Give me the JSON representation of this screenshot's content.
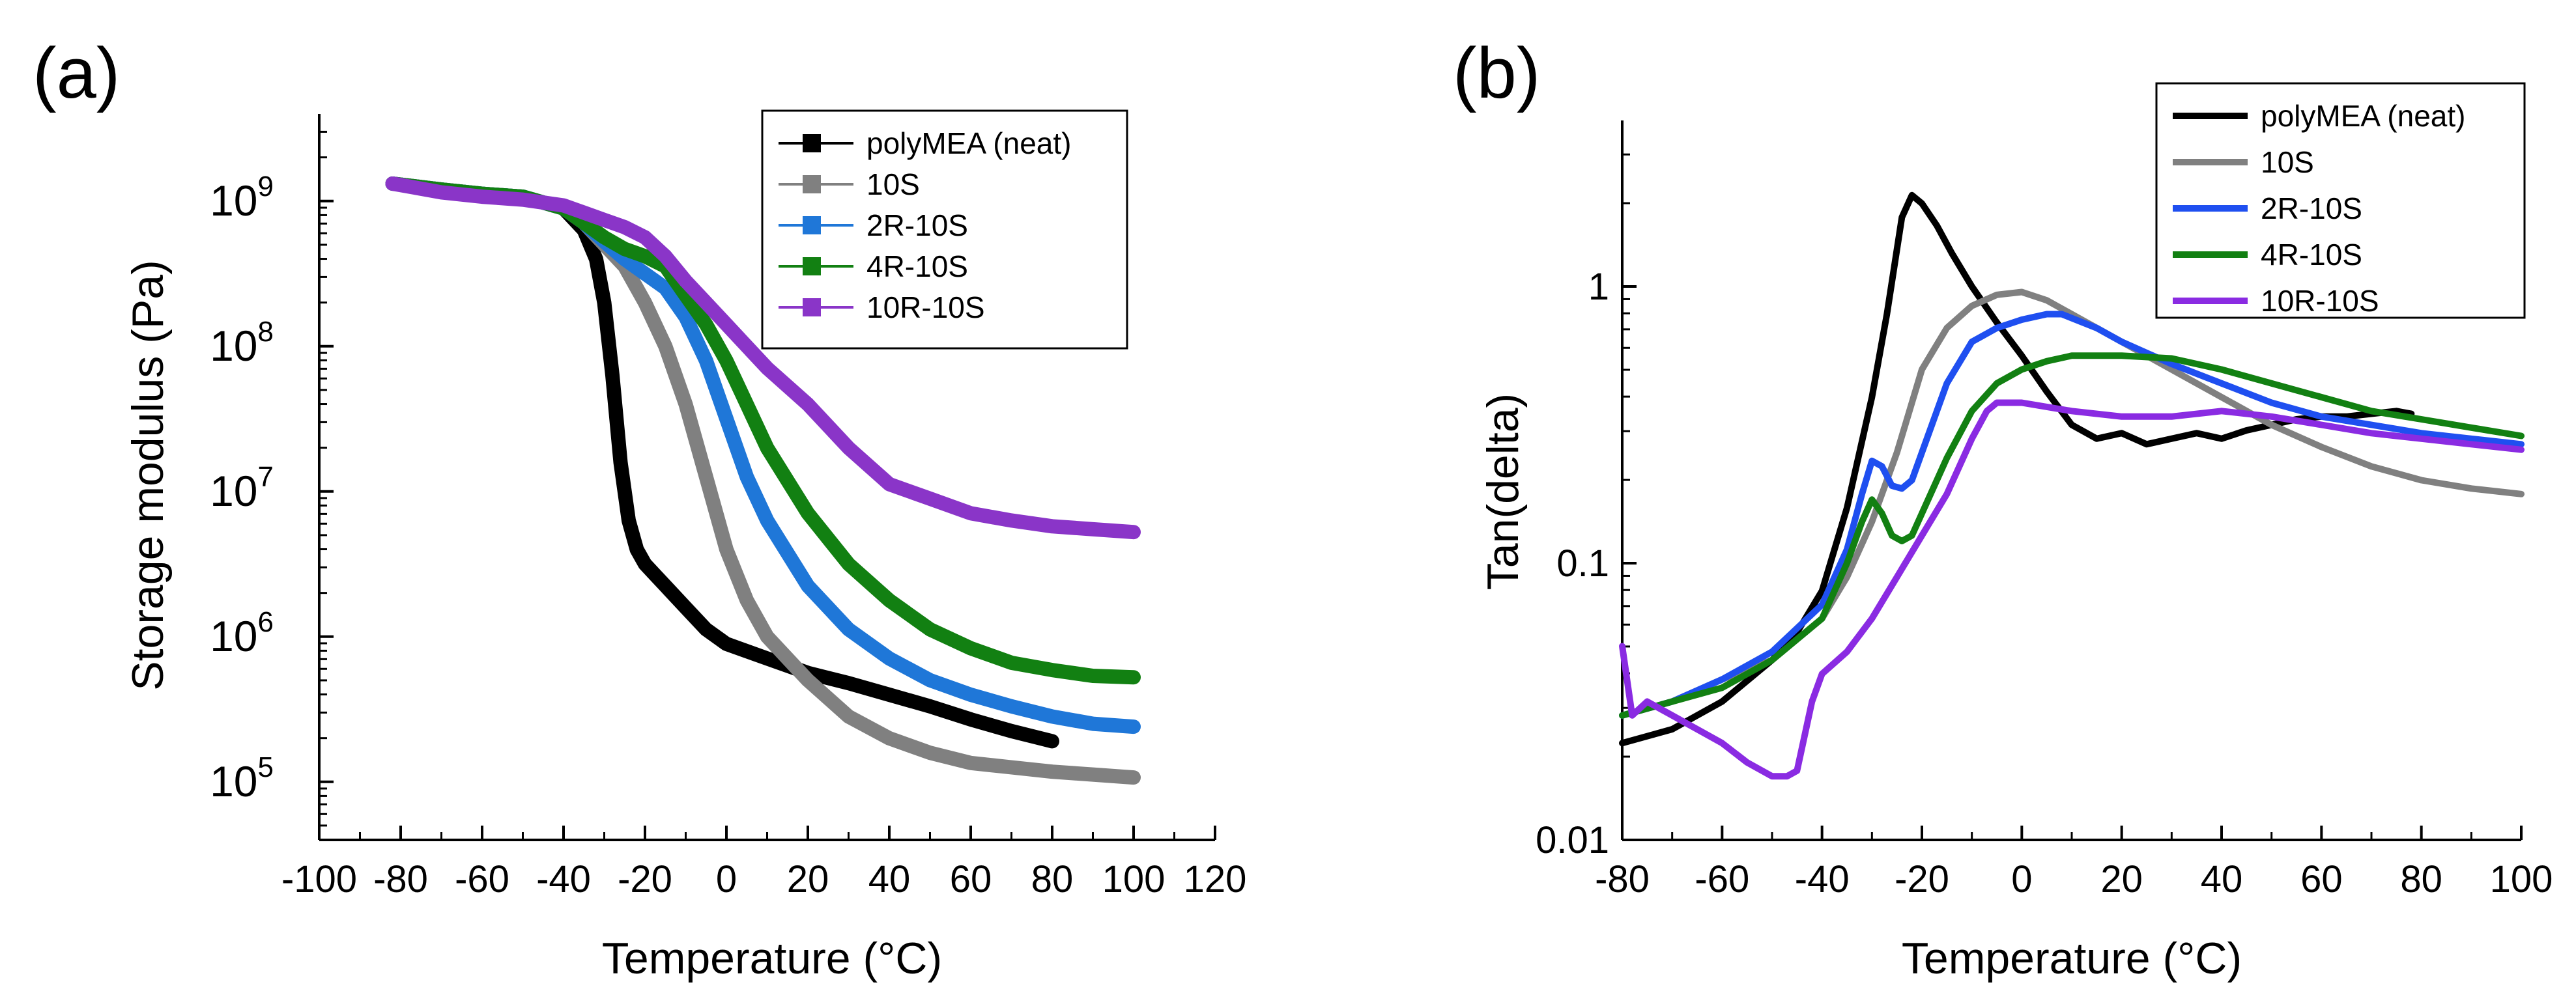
{
  "chart_data": [
    {
      "panel": "(a)",
      "type": "line",
      "xlabel": "Temperature (°C)",
      "ylabel": "Storage modulus (Pa)",
      "xlim": [
        -100,
        120
      ],
      "ylim_log10": [
        4.6,
        9.6
      ],
      "yscale": "log",
      "grid": false,
      "legend": "top-right",
      "x_ticks": [
        -100,
        -80,
        -60,
        -40,
        -20,
        0,
        20,
        40,
        60,
        80,
        100,
        120
      ],
      "x_tick_labels": [
        "-100",
        "-80",
        "-60",
        "-40",
        "-20",
        "0",
        "20",
        "40",
        "60",
        "80",
        "100",
        "120"
      ],
      "y_ticks_log10": [
        5,
        6,
        7,
        8,
        9
      ],
      "y_tick_base": "10",
      "y_tick_exponents": [
        "5",
        "6",
        "7",
        "8",
        "9"
      ],
      "series": [
        {
          "name": "polyMEA (neat)",
          "color": "#000000",
          "x": [
            -82,
            -70,
            -60,
            -50,
            -40,
            -35,
            -32,
            -30,
            -28,
            -26,
            -24,
            -22,
            -20,
            -15,
            -10,
            -5,
            0,
            10,
            20,
            30,
            40,
            50,
            60,
            70,
            80
          ],
          "log10_y": [
            9.12,
            9.08,
            9.05,
            9.03,
            8.95,
            8.8,
            8.6,
            8.3,
            7.8,
            7.2,
            6.8,
            6.6,
            6.5,
            6.35,
            6.2,
            6.05,
            5.95,
            5.85,
            5.75,
            5.68,
            5.6,
            5.52,
            5.43,
            5.35,
            5.28
          ]
        },
        {
          "name": "10S",
          "color": "#808080",
          "x": [
            -82,
            -70,
            -60,
            -50,
            -40,
            -35,
            -30,
            -25,
            -20,
            -15,
            -10,
            -5,
            0,
            5,
            10,
            20,
            30,
            40,
            50,
            60,
            70,
            80,
            90,
            100
          ],
          "log10_y": [
            9.12,
            9.08,
            9.05,
            9.03,
            8.95,
            8.85,
            8.7,
            8.55,
            8.3,
            8.0,
            7.6,
            7.1,
            6.6,
            6.25,
            6.0,
            5.7,
            5.45,
            5.3,
            5.2,
            5.13,
            5.1,
            5.07,
            5.05,
            5.03
          ]
        },
        {
          "name": "2R-10S",
          "color": "#1f77d8",
          "x": [
            -82,
            -70,
            -60,
            -50,
            -40,
            -35,
            -30,
            -25,
            -20,
            -15,
            -10,
            -5,
            0,
            5,
            10,
            20,
            30,
            40,
            50,
            60,
            70,
            80,
            90,
            100
          ],
          "log10_y": [
            9.12,
            9.08,
            9.05,
            9.03,
            8.95,
            8.85,
            8.72,
            8.6,
            8.5,
            8.4,
            8.2,
            7.9,
            7.5,
            7.1,
            6.8,
            6.35,
            6.05,
            5.85,
            5.7,
            5.6,
            5.52,
            5.45,
            5.4,
            5.38
          ]
        },
        {
          "name": "4R-10S",
          "color": "#128012",
          "x": [
            -82,
            -70,
            -60,
            -50,
            -40,
            -35,
            -30,
            -25,
            -20,
            -15,
            -10,
            -5,
            0,
            5,
            10,
            20,
            30,
            40,
            50,
            60,
            70,
            80,
            90,
            100
          ],
          "log10_y": [
            9.12,
            9.08,
            9.05,
            9.03,
            8.95,
            8.85,
            8.75,
            8.67,
            8.62,
            8.55,
            8.35,
            8.15,
            7.9,
            7.6,
            7.3,
            6.85,
            6.5,
            6.25,
            6.05,
            5.92,
            5.82,
            5.77,
            5.73,
            5.72
          ]
        },
        {
          "name": "10R-10S",
          "color": "#8a35c8",
          "x": [
            -82,
            -70,
            -60,
            -50,
            -40,
            -35,
            -30,
            -25,
            -20,
            -15,
            -10,
            -5,
            0,
            10,
            20,
            30,
            40,
            50,
            60,
            70,
            80,
            90,
            100
          ],
          "log10_y": [
            9.12,
            9.06,
            9.03,
            9.01,
            8.97,
            8.92,
            8.87,
            8.82,
            8.75,
            8.62,
            8.45,
            8.3,
            8.15,
            7.85,
            7.6,
            7.3,
            7.05,
            6.95,
            6.85,
            6.8,
            6.76,
            6.74,
            6.72
          ]
        }
      ],
      "markers": true
    },
    {
      "panel": "(b)",
      "type": "line",
      "xlabel": "Temperature (°C)",
      "ylabel": "Tan(delta)",
      "xlim": [
        -80,
        100
      ],
      "ylim_log10": [
        -2,
        0.6
      ],
      "yscale": "log",
      "grid": false,
      "legend": "top-right",
      "x_ticks": [
        -80,
        -60,
        -40,
        -20,
        0,
        20,
        40,
        60,
        80,
        100
      ],
      "x_tick_labels": [
        "-80",
        "-60",
        "-40",
        "-20",
        "0",
        "20",
        "40",
        "60",
        "80",
        "100"
      ],
      "y_ticks_log10": [
        -2,
        -1,
        0
      ],
      "y_tick_labels": [
        "0.01",
        "0.1",
        "1"
      ],
      "series": [
        {
          "name": "polyMEA (neat)",
          "color": "#000000",
          "x": [
            -80,
            -70,
            -60,
            -50,
            -45,
            -40,
            -35,
            -30,
            -27,
            -24,
            -22,
            -20,
            -17,
            -14,
            -10,
            -5,
            0,
            5,
            10,
            15,
            20,
            25,
            30,
            35,
            40,
            45,
            50,
            55,
            60,
            65,
            70,
            75,
            78
          ],
          "log10_y": [
            -1.65,
            -1.6,
            -1.5,
            -1.35,
            -1.25,
            -1.1,
            -0.8,
            -0.4,
            -0.1,
            0.25,
            0.33,
            0.3,
            0.22,
            0.12,
            0.0,
            -0.13,
            -0.25,
            -0.38,
            -0.5,
            -0.55,
            -0.53,
            -0.57,
            -0.55,
            -0.53,
            -0.55,
            -0.52,
            -0.5,
            -0.48,
            -0.47,
            -0.47,
            -0.46,
            -0.45,
            -0.46
          ]
        },
        {
          "name": "10S",
          "color": "#808080",
          "x": [
            -80,
            -70,
            -60,
            -50,
            -40,
            -35,
            -30,
            -25,
            -20,
            -15,
            -10,
            -5,
            0,
            5,
            10,
            20,
            30,
            40,
            50,
            60,
            70,
            80,
            90,
            100
          ],
          "log10_y": [
            -1.55,
            -1.5,
            -1.42,
            -1.35,
            -1.2,
            -1.05,
            -0.85,
            -0.6,
            -0.3,
            -0.15,
            -0.07,
            -0.03,
            -0.02,
            -0.05,
            -0.1,
            -0.2,
            -0.3,
            -0.4,
            -0.5,
            -0.58,
            -0.65,
            -0.7,
            -0.73,
            -0.75
          ]
        },
        {
          "name": "2R-10S",
          "color": "#1f4ff0",
          "x": [
            -80,
            -70,
            -60,
            -50,
            -40,
            -35,
            -32,
            -30,
            -28,
            -26,
            -24,
            -22,
            -20,
            -15,
            -10,
            -5,
            0,
            5,
            8,
            15,
            20,
            30,
            40,
            50,
            60,
            70,
            80,
            90,
            100
          ],
          "log10_y": [
            -1.55,
            -1.5,
            -1.42,
            -1.32,
            -1.15,
            -0.95,
            -0.75,
            -0.63,
            -0.65,
            -0.72,
            -0.73,
            -0.7,
            -0.6,
            -0.35,
            -0.2,
            -0.15,
            -0.12,
            -0.1,
            -0.1,
            -0.15,
            -0.2,
            -0.28,
            -0.35,
            -0.42,
            -0.47,
            -0.5,
            -0.53,
            -0.55,
            -0.57
          ]
        },
        {
          "name": "4R-10S",
          "color": "#128012",
          "x": [
            -80,
            -70,
            -60,
            -50,
            -40,
            -35,
            -32,
            -30,
            -28,
            -26,
            -24,
            -22,
            -20,
            -15,
            -10,
            -5,
            0,
            5,
            10,
            20,
            30,
            40,
            50,
            60,
            70,
            80,
            90,
            100
          ],
          "log10_y": [
            -1.55,
            -1.5,
            -1.45,
            -1.35,
            -1.2,
            -1.0,
            -0.85,
            -0.77,
            -0.82,
            -0.9,
            -0.92,
            -0.9,
            -0.82,
            -0.62,
            -0.45,
            -0.35,
            -0.3,
            -0.27,
            -0.25,
            -0.25,
            -0.26,
            -0.3,
            -0.35,
            -0.4,
            -0.45,
            -0.48,
            -0.51,
            -0.54
          ]
        },
        {
          "name": "10R-10S",
          "color": "#8a2be2",
          "x": [
            -80,
            -78,
            -75,
            -70,
            -65,
            -60,
            -55,
            -50,
            -47,
            -45,
            -42,
            -40,
            -35,
            -30,
            -25,
            -20,
            -15,
            -10,
            -7,
            -5,
            0,
            10,
            20,
            30,
            40,
            50,
            60,
            70,
            80,
            90,
            100
          ],
          "log10_y": [
            -1.3,
            -1.55,
            -1.5,
            -1.55,
            -1.6,
            -1.65,
            -1.72,
            -1.77,
            -1.77,
            -1.75,
            -1.5,
            -1.4,
            -1.32,
            -1.2,
            -1.05,
            -0.9,
            -0.75,
            -0.55,
            -0.45,
            -0.42,
            -0.42,
            -0.45,
            -0.47,
            -0.47,
            -0.45,
            -0.47,
            -0.5,
            -0.53,
            -0.55,
            -0.57,
            -0.59
          ]
        }
      ],
      "markers": false
    }
  ]
}
